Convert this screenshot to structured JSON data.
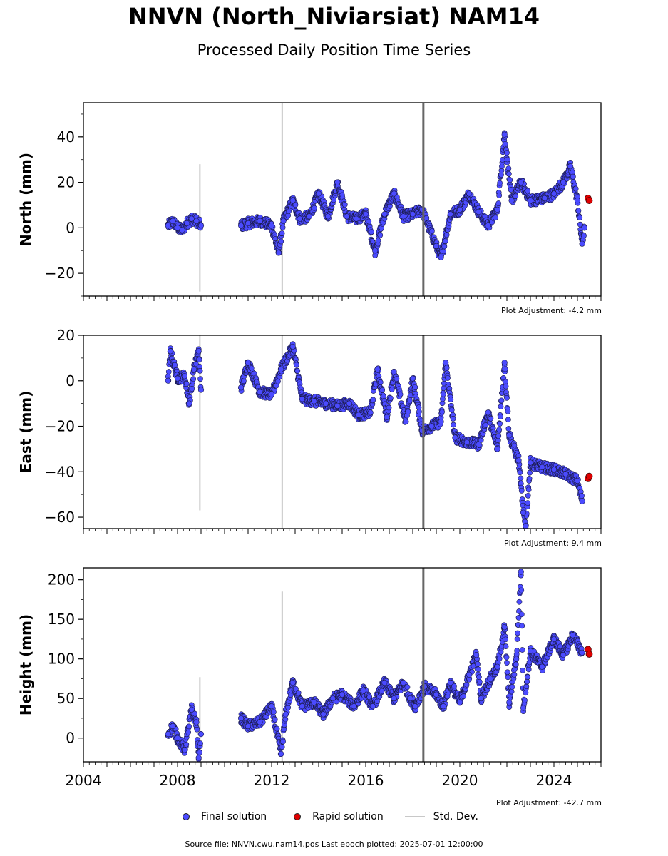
{
  "title": "NNVN (North_Niviarsiat) NAM14",
  "subtitle": "Processed Daily Position Time Series",
  "legend": {
    "final": "Final solution",
    "rapid": "Rapid solution",
    "std": "Std. Dev."
  },
  "footer": "Source file: NNVN.cwu.nam14.pos  Last epoch plotted: 2025-07-01 12:00:00",
  "colors": {
    "final": "#4b4bff",
    "rapid": "#e00000",
    "std": "#c8c8c8",
    "event_line": "#666666"
  },
  "chart_data": [
    {
      "type": "scatter",
      "ylabel": "North (mm)",
      "adjustment": "Plot Adjustment: -4.2 mm",
      "xlim": [
        2004,
        2026
      ],
      "ylim": [
        -30,
        55
      ],
      "yticks": [
        -20,
        0,
        20,
        40
      ],
      "event_lines": [
        2018.45
      ],
      "std_spikes": [
        {
          "x": 2008.95,
          "y0": -28,
          "y1": 28
        },
        {
          "x": 2012.45,
          "y0": -30,
          "y1": 55
        }
      ],
      "final_solution": [
        [
          2007.6,
          1
        ],
        [
          2007.8,
          3
        ],
        [
          2008.0,
          0
        ],
        [
          2008.2,
          -1
        ],
        [
          2008.4,
          2
        ],
        [
          2008.6,
          4
        ],
        [
          2008.8,
          3
        ],
        [
          2009.0,
          1
        ],
        [
          2010.7,
          1
        ],
        [
          2011.0,
          2
        ],
        [
          2011.5,
          3
        ],
        [
          2012.0,
          1
        ],
        [
          2012.3,
          -11
        ],
        [
          2012.5,
          3
        ],
        [
          2012.9,
          12
        ],
        [
          2013.2,
          4
        ],
        [
          2013.6,
          5
        ],
        [
          2014.0,
          15
        ],
        [
          2014.4,
          5
        ],
        [
          2014.8,
          20
        ],
        [
          2015.2,
          5
        ],
        [
          2015.6,
          4
        ],
        [
          2016.0,
          6
        ],
        [
          2016.4,
          -10
        ],
        [
          2016.8,
          6
        ],
        [
          2017.2,
          15
        ],
        [
          2017.6,
          5
        ],
        [
          2018.0,
          6
        ],
        [
          2018.4,
          8
        ],
        [
          2019.0,
          -8
        ],
        [
          2019.2,
          -13
        ],
        [
          2019.6,
          6
        ],
        [
          2020.0,
          8
        ],
        [
          2020.4,
          15
        ],
        [
          2020.8,
          7
        ],
        [
          2021.2,
          1
        ],
        [
          2021.6,
          8
        ],
        [
          2021.9,
          41
        ],
        [
          2022.2,
          12
        ],
        [
          2022.6,
          20
        ],
        [
          2023.0,
          12
        ],
        [
          2023.6,
          13
        ],
        [
          2024.0,
          15
        ],
        [
          2024.4,
          20
        ],
        [
          2024.7,
          27
        ],
        [
          2025.0,
          12
        ],
        [
          2025.2,
          -7
        ],
        [
          2025.3,
          0
        ]
      ],
      "rapid_solution": [
        [
          2025.45,
          13
        ],
        [
          2025.5,
          12
        ]
      ]
    },
    {
      "type": "scatter",
      "ylabel": "East (mm)",
      "adjustment": "Plot Adjustment: 9.4 mm",
      "xlim": [
        2004,
        2026
      ],
      "ylim": [
        -65,
        20
      ],
      "yticks": [
        -60,
        -40,
        -20,
        0,
        20
      ],
      "event_lines": [
        2018.45
      ],
      "std_spikes": [
        {
          "x": 2008.95,
          "y0": -57,
          "y1": 20
        },
        {
          "x": 2012.45,
          "y0": -65,
          "y1": 20
        }
      ],
      "final_solution": [
        [
          2007.6,
          0
        ],
        [
          2007.7,
          13
        ],
        [
          2008.0,
          1
        ],
        [
          2008.3,
          2
        ],
        [
          2008.5,
          -10
        ],
        [
          2008.7,
          5
        ],
        [
          2008.9,
          13
        ],
        [
          2009.0,
          -4
        ],
        [
          2010.7,
          -3
        ],
        [
          2011.0,
          8
        ],
        [
          2011.5,
          -5
        ],
        [
          2012.0,
          -6
        ],
        [
          2012.4,
          5
        ],
        [
          2012.9,
          15
        ],
        [
          2013.3,
          -8
        ],
        [
          2013.8,
          -9
        ],
        [
          2014.3,
          -10
        ],
        [
          2014.8,
          -11
        ],
        [
          2015.3,
          -10
        ],
        [
          2015.7,
          -15
        ],
        [
          2016.2,
          -14
        ],
        [
          2016.5,
          5
        ],
        [
          2016.9,
          -16
        ],
        [
          2017.2,
          4
        ],
        [
          2017.7,
          -18
        ],
        [
          2018.0,
          1
        ],
        [
          2018.4,
          -22
        ],
        [
          2018.8,
          -20
        ],
        [
          2019.2,
          -18
        ],
        [
          2019.4,
          8
        ],
        [
          2019.8,
          -25
        ],
        [
          2020.3,
          -27
        ],
        [
          2020.8,
          -28
        ],
        [
          2021.2,
          -14
        ],
        [
          2021.6,
          -30
        ],
        [
          2021.9,
          8
        ],
        [
          2022.1,
          -24
        ],
        [
          2022.5,
          -35
        ],
        [
          2022.7,
          -58
        ],
        [
          2022.8,
          -64
        ],
        [
          2023.0,
          -36
        ],
        [
          2023.5,
          -38
        ],
        [
          2024.0,
          -39
        ],
        [
          2024.5,
          -41
        ],
        [
          2025.0,
          -44
        ],
        [
          2025.2,
          -53
        ]
      ],
      "rapid_solution": [
        [
          2025.45,
          -43
        ],
        [
          2025.5,
          -42
        ]
      ]
    },
    {
      "type": "scatter",
      "ylabel": "Height (mm)",
      "adjustment": "Plot Adjustment: -42.7 mm",
      "xlim": [
        2004,
        2026
      ],
      "ylim": [
        -30,
        215
      ],
      "yticks": [
        0,
        50,
        100,
        150,
        200
      ],
      "xticks": [
        2004,
        2008,
        2012,
        2016,
        2020,
        2024
      ],
      "event_lines": [
        2018.45
      ],
      "std_spikes": [
        {
          "x": 2008.95,
          "y0": -30,
          "y1": 77
        },
        {
          "x": 2012.45,
          "y0": -30,
          "y1": 185
        }
      ],
      "final_solution": [
        [
          2007.6,
          5
        ],
        [
          2007.8,
          15
        ],
        [
          2008.0,
          0
        ],
        [
          2008.3,
          -15
        ],
        [
          2008.6,
          36
        ],
        [
          2008.8,
          20
        ],
        [
          2008.9,
          -25
        ],
        [
          2009.0,
          5
        ],
        [
          2010.7,
          25
        ],
        [
          2011.0,
          15
        ],
        [
          2011.5,
          20
        ],
        [
          2012.0,
          40
        ],
        [
          2012.4,
          -20
        ],
        [
          2012.6,
          30
        ],
        [
          2012.9,
          70
        ],
        [
          2013.3,
          40
        ],
        [
          2013.8,
          45
        ],
        [
          2014.2,
          30
        ],
        [
          2014.6,
          50
        ],
        [
          2015.0,
          55
        ],
        [
          2015.5,
          40
        ],
        [
          2015.9,
          60
        ],
        [
          2016.3,
          40
        ],
        [
          2016.8,
          70
        ],
        [
          2017.2,
          50
        ],
        [
          2017.6,
          70
        ],
        [
          2017.9,
          50
        ],
        [
          2018.1,
          40
        ],
        [
          2018.5,
          65
        ],
        [
          2019.0,
          55
        ],
        [
          2019.3,
          40
        ],
        [
          2019.6,
          70
        ],
        [
          2020.0,
          45
        ],
        [
          2020.4,
          80
        ],
        [
          2020.7,
          105
        ],
        [
          2020.9,
          50
        ],
        [
          2021.3,
          75
        ],
        [
          2021.6,
          90
        ],
        [
          2021.9,
          140
        ],
        [
          2022.1,
          45
        ],
        [
          2022.4,
          100
        ],
        [
          2022.6,
          210
        ],
        [
          2022.7,
          38
        ],
        [
          2023.0,
          110
        ],
        [
          2023.5,
          90
        ],
        [
          2024.0,
          125
        ],
        [
          2024.4,
          105
        ],
        [
          2024.8,
          130
        ],
        [
          2025.2,
          108
        ]
      ],
      "rapid_solution": [
        [
          2025.45,
          112
        ],
        [
          2025.5,
          106
        ]
      ]
    }
  ]
}
